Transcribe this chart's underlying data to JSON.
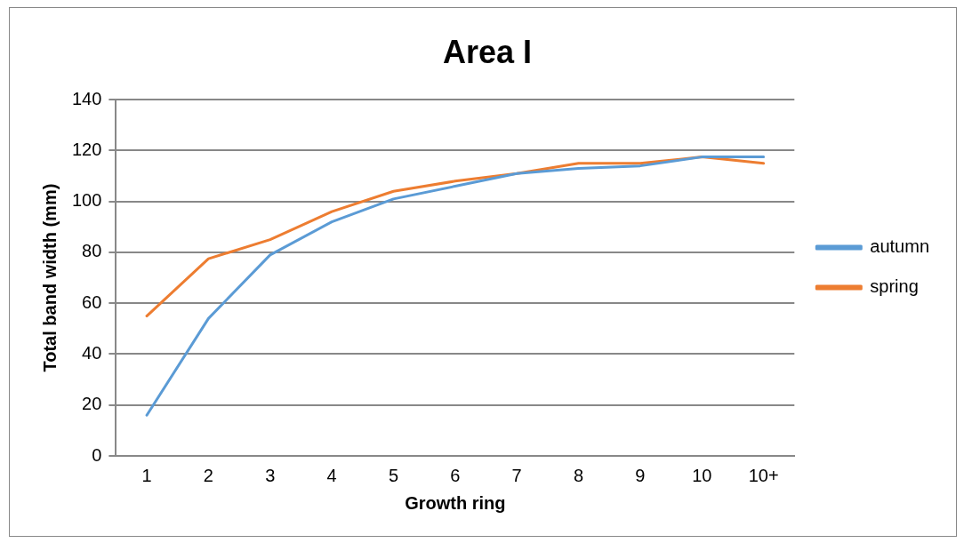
{
  "chart_data": {
    "type": "line",
    "title": "Area I",
    "xlabel": "Growth ring",
    "ylabel": "Total band width (mm)",
    "categories": [
      "1",
      "2",
      "3",
      "4",
      "5",
      "6",
      "7",
      "8",
      "9",
      "10",
      "10+"
    ],
    "series": [
      {
        "name": "autumn",
        "color": "#5b9bd5",
        "values": [
          16,
          54,
          79,
          92,
          101,
          106,
          111,
          113,
          114,
          117.5,
          117.5
        ]
      },
      {
        "name": "spring",
        "color": "#ed7d31",
        "values": [
          55,
          77.5,
          85,
          96,
          104,
          108,
          111,
          115,
          115,
          117.5,
          115
        ]
      }
    ],
    "ylim": [
      0,
      140
    ],
    "yticks": [
      0,
      20,
      40,
      60,
      80,
      100,
      120,
      140
    ],
    "grid": "y",
    "legend": "right",
    "marker": "none",
    "line_style": "solid"
  }
}
